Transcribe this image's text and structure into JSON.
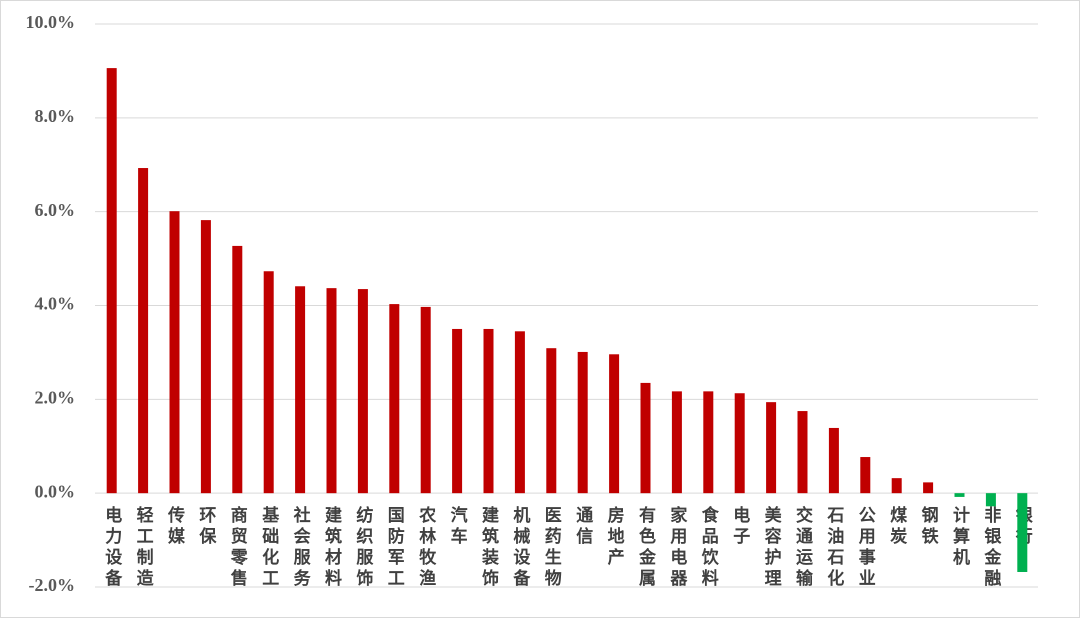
{
  "chart_data": {
    "type": "bar",
    "categories": [
      "电力设备",
      "轻工制造",
      "传媒",
      "环保",
      "商贸零售",
      "基础化工",
      "社会服务",
      "建筑材料",
      "纺织服饰",
      "国防军工",
      "农林牧渔",
      "汽车",
      "建筑装饰",
      "机械设备",
      "医药生物",
      "通信",
      "房地产",
      "有色金属",
      "家用电器",
      "食品饮料",
      "电子",
      "美容护理",
      "交通运输",
      "石油石化",
      "公用事业",
      "煤炭",
      "钢铁",
      "计算机",
      "非银金融",
      "银行"
    ],
    "values": [
      9.06,
      6.93,
      6.01,
      5.82,
      5.27,
      4.73,
      4.41,
      4.37,
      4.35,
      4.03,
      3.97,
      3.5,
      3.5,
      3.45,
      3.09,
      3.01,
      2.96,
      2.35,
      2.17,
      2.17,
      2.13,
      1.94,
      1.75,
      1.39,
      0.77,
      0.32,
      0.23,
      -0.08,
      -0.28,
      -1.68
    ],
    "color": "#c00000",
    "negative_color": "#00b050",
    "ylim": [
      -2,
      10
    ],
    "yticks": [
      {
        "value": -2,
        "label": "-2.0%"
      },
      {
        "value": 0,
        "label": "0.0%"
      },
      {
        "value": 2,
        "label": "2.0%"
      },
      {
        "value": 4,
        "label": "4.0%"
      },
      {
        "value": 6,
        "label": "6.0%"
      },
      {
        "value": 8,
        "label": "8.0%"
      },
      {
        "value": 10,
        "label": "10.0%"
      }
    ],
    "grid": true
  }
}
